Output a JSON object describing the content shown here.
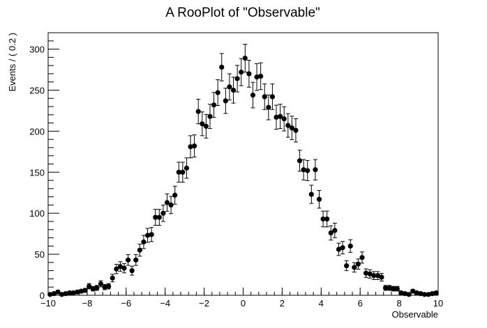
{
  "chart_data": {
    "type": "scatter",
    "title": "A RooPlot of \"Observable\"",
    "xlabel": "Observable",
    "ylabel": "Events / ( 0.2 )",
    "xlim": [
      -10,
      10
    ],
    "ylim": [
      0,
      320
    ],
    "xticks": [
      -10,
      -8,
      -6,
      -4,
      -2,
      0,
      2,
      4,
      6,
      8,
      10
    ],
    "yticks": [
      0,
      50,
      100,
      150,
      200,
      250,
      300
    ],
    "xtick_labels": [
      "−10",
      "−8",
      "−6",
      "−4",
      "−2",
      "0",
      "2",
      "4",
      "6",
      "8",
      "10"
    ],
    "ytick_labels": [
      "0",
      "50",
      "100",
      "150",
      "200",
      "250",
      "300"
    ],
    "grid": false,
    "legend": "none",
    "marker_color": "#000000",
    "series": [
      {
        "x": [
          -9.9,
          -9.7,
          -9.5,
          -9.3,
          -9.1,
          -8.9,
          -8.7,
          -8.5,
          -8.3,
          -8.1,
          -7.9,
          -7.7,
          -7.5,
          -7.3,
          -7.1,
          -6.9,
          -6.7,
          -6.5,
          -6.3,
          -6.1,
          -5.9,
          -5.7,
          -5.5,
          -5.3,
          -5.1,
          -4.9,
          -4.7,
          -4.5,
          -4.3,
          -4.1,
          -3.9,
          -3.7,
          -3.5,
          -3.3,
          -3.1,
          -2.9,
          -2.7,
          -2.5,
          -2.3,
          -2.1,
          -1.9,
          -1.7,
          -1.5,
          -1.3,
          -1.1,
          -0.9,
          -0.7,
          -0.5,
          -0.3,
          -0.1,
          0.1,
          0.3,
          0.5,
          0.7,
          0.9,
          1.1,
          1.3,
          1.5,
          1.7,
          1.9,
          2.1,
          2.3,
          2.5,
          2.7,
          2.9,
          3.1,
          3.3,
          3.5,
          3.7,
          3.9,
          4.1,
          4.3,
          4.5,
          4.7,
          4.9,
          5.1,
          5.3,
          5.5,
          5.7,
          5.9,
          6.1,
          6.3,
          6.5,
          6.7,
          6.9,
          7.1,
          7.3,
          7.5,
          7.7,
          7.9,
          8.1,
          8.3,
          8.5,
          8.7,
          8.9,
          9.1,
          9.3,
          9.5,
          9.7,
          9.9
        ],
        "y": [
          1,
          2,
          4,
          1,
          2,
          3,
          3,
          4,
          5,
          6,
          11,
          8,
          9,
          14,
          10,
          11,
          21,
          32,
          35,
          33,
          43,
          30,
          43,
          55,
          65,
          73,
          74,
          95,
          95,
          100,
          113,
          110,
          122,
          150,
          150,
          155,
          181,
          182,
          224,
          209,
          206,
          218,
          232,
          247,
          278,
          237,
          254,
          250,
          264,
          272,
          289,
          270,
          244,
          266,
          267,
          242,
          229,
          242,
          217,
          218,
          215,
          207,
          204,
          201,
          164,
          153,
          152,
          123,
          153,
          117,
          93,
          93,
          76,
          79,
          56,
          58,
          36,
          60,
          34,
          38,
          46,
          27,
          26,
          24,
          24,
          22,
          9,
          9,
          8,
          8,
          3,
          2,
          1,
          5,
          3,
          2,
          1,
          1,
          2,
          3
        ],
        "yerr": [
          1,
          1.4,
          2,
          1,
          1.4,
          1.7,
          1.7,
          2,
          2.2,
          2.4,
          3.3,
          2.8,
          3,
          3.7,
          3.2,
          3.3,
          4.6,
          5.7,
          5.9,
          5.7,
          6.6,
          5.5,
          6.6,
          7.4,
          8.1,
          8.5,
          8.6,
          9.7,
          9.7,
          10,
          10.6,
          10.5,
          11,
          12.2,
          12.2,
          12.4,
          13.5,
          13.5,
          15,
          14.5,
          14.4,
          14.8,
          15.2,
          15.7,
          16.7,
          15.4,
          15.9,
          15.8,
          16.2,
          16.5,
          17,
          16.4,
          15.6,
          16.3,
          16.3,
          15.6,
          15.1,
          15.6,
          14.7,
          14.8,
          14.7,
          14.4,
          14.3,
          14.2,
          12.8,
          12.4,
          12.3,
          11.1,
          12.4,
          10.8,
          9.6,
          9.6,
          8.7,
          8.9,
          7.5,
          7.6,
          6,
          7.7,
          5.8,
          6.2,
          6.8,
          5.2,
          5.1,
          4.9,
          4.9,
          4.7,
          3,
          3,
          2.8,
          2.8,
          1.7,
          1.4,
          1,
          2.2,
          1.7,
          1.4,
          1,
          1,
          1.4,
          1.7
        ]
      }
    ]
  }
}
